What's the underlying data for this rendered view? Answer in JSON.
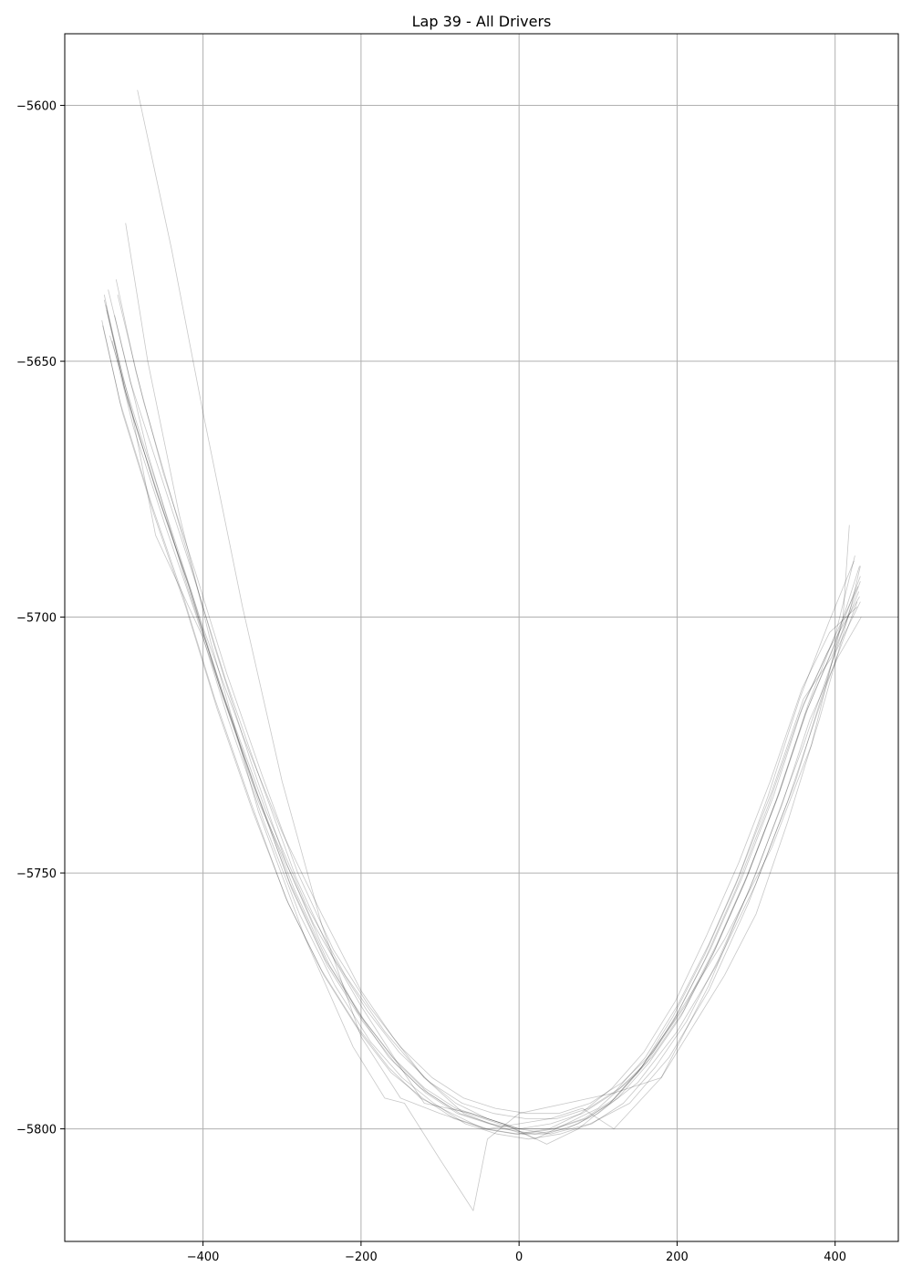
{
  "chart_data": {
    "type": "line",
    "title": "Lap 39 - All Drivers",
    "xlabel": "",
    "ylabel": "",
    "xlim": [
      -575,
      480
    ],
    "ylim": [
      -5822,
      -5586
    ],
    "grid": true,
    "line_color": "#000000",
    "grid_color": "#b0b0b0",
    "x_ticks": [
      -400,
      -200,
      0,
      200,
      400
    ],
    "x_tick_labels": [
      "−400",
      "−200",
      "0",
      "200",
      "400"
    ],
    "y_ticks": [
      -5600,
      -5650,
      -5700,
      -5750,
      -5800
    ],
    "y_tick_labels": [
      "−5600",
      "−5650",
      "−5700",
      "−5750",
      "−5800"
    ],
    "series": [
      {
        "x": [
          -525,
          -500,
          -460,
          -420,
          -380,
          -335,
          -290,
          -245,
          -200,
          -160,
          -120,
          -80,
          -40,
          0,
          40,
          80,
          120,
          160,
          200,
          240,
          280,
          320,
          360,
          395,
          430
        ],
        "y": [
          -5637,
          -5655,
          -5675,
          -5693,
          -5713,
          -5733,
          -5752,
          -5767,
          -5778,
          -5786,
          -5792,
          -5796,
          -5798,
          -5800,
          -5799,
          -5797,
          -5793,
          -5786,
          -5776,
          -5764,
          -5750,
          -5734,
          -5716,
          -5708,
          -5695
        ]
      },
      {
        "x": [
          -522,
          -495,
          -455,
          -415,
          -375,
          -330,
          -285,
          -240,
          -195,
          -155,
          -115,
          -75,
          -35,
          5,
          45,
          85,
          125,
          165,
          205,
          245,
          285,
          325,
          362,
          398,
          432
        ],
        "y": [
          -5640,
          -5658,
          -5677,
          -5695,
          -5715,
          -5735,
          -5753,
          -5768,
          -5779,
          -5787,
          -5793,
          -5797,
          -5799,
          -5801,
          -5800,
          -5798,
          -5794,
          -5787,
          -5778,
          -5766,
          -5752,
          -5736,
          -5719,
          -5706,
          -5692
        ]
      },
      {
        "x": [
          -527,
          -502,
          -462,
          -422,
          -382,
          -337,
          -292,
          -247,
          -202,
          -162,
          -122,
          -82,
          -42,
          -2,
          38,
          78,
          118,
          158,
          198,
          238,
          278,
          318,
          358,
          393,
          428
        ],
        "y": [
          -5643,
          -5660,
          -5680,
          -5698,
          -5718,
          -5738,
          -5756,
          -5770,
          -5781,
          -5789,
          -5794,
          -5798,
          -5800,
          -5801,
          -5800,
          -5797,
          -5792,
          -5785,
          -5775,
          -5762,
          -5748,
          -5732,
          -5714,
          -5703,
          -5698
        ]
      },
      {
        "x": [
          -520,
          -492,
          -452,
          -412,
          -372,
          -327,
          -282,
          -237,
          -192,
          -152,
          -112,
          -72,
          -32,
          8,
          48,
          88,
          128,
          168,
          208,
          248,
          288,
          328,
          365,
          400,
          431
        ],
        "y": [
          -5636,
          -5654,
          -5673,
          -5692,
          -5712,
          -5732,
          -5751,
          -5766,
          -5777,
          -5785,
          -5791,
          -5795,
          -5797,
          -5798,
          -5798,
          -5796,
          -5792,
          -5786,
          -5777,
          -5765,
          -5751,
          -5735,
          -5718,
          -5705,
          -5690
        ]
      },
      {
        "x": [
          -515,
          -488,
          -448,
          -408,
          -368,
          -323,
          -278,
          -233,
          -188,
          -148,
          -108,
          -68,
          -28,
          12,
          52,
          92,
          132,
          172,
          212,
          252,
          292,
          332,
          368,
          403,
          433
        ],
        "y": [
          -5646,
          -5663,
          -5682,
          -5700,
          -5720,
          -5740,
          -5758,
          -5772,
          -5783,
          -5790,
          -5795,
          -5799,
          -5801,
          -5802,
          -5801,
          -5799,
          -5795,
          -5788,
          -5779,
          -5767,
          -5753,
          -5737,
          -5720,
          -5708,
          -5700
        ]
      },
      {
        "x": [
          -510,
          -485,
          -450,
          -410,
          -370,
          -325,
          -280,
          -235,
          -190,
          -150,
          -110,
          -70,
          -30,
          10,
          50,
          90,
          130,
          170,
          210,
          250,
          290,
          330,
          366,
          401,
          425
        ],
        "y": [
          -5634,
          -5652,
          -5672,
          -5691,
          -5711,
          -5731,
          -5750,
          -5765,
          -5776,
          -5784,
          -5790,
          -5794,
          -5796,
          -5797,
          -5797,
          -5795,
          -5791,
          -5785,
          -5776,
          -5764,
          -5750,
          -5734,
          -5717,
          -5703,
          -5688
        ]
      },
      {
        "x": [
          -525,
          -498,
          -458,
          -418,
          -378,
          -333,
          -288,
          -243,
          -198,
          -158,
          -118,
          -78,
          -38,
          2,
          42,
          82,
          122,
          162,
          202,
          242,
          282,
          322,
          360,
          396,
          429
        ],
        "y": [
          -5638,
          -5656,
          -5676,
          -5694,
          -5714,
          -5734,
          -5753,
          -5768,
          -5779,
          -5787,
          -5793,
          -5797,
          -5799,
          -5800,
          -5800,
          -5798,
          -5794,
          -5787,
          -5777,
          -5765,
          -5751,
          -5735,
          -5717,
          -5705,
          -5694
        ]
      },
      {
        "x": [
          -523,
          -490,
          -460,
          -400,
          -330,
          -260,
          -200,
          -150,
          -120,
          -60,
          -20,
          20,
          60,
          100,
          150,
          200,
          260,
          320,
          370,
          410,
          418
        ],
        "y": [
          -5639,
          -5660,
          -5684,
          -5704,
          -5736,
          -5760,
          -5776,
          -5788,
          -5795,
          -5797,
          -5799,
          -5802,
          -5799,
          -5796,
          -5789,
          -5778,
          -5763,
          -5745,
          -5725,
          -5700,
          -5682
        ]
      },
      {
        "x": [
          -518,
          -480,
          -440,
          -400,
          -350,
          -300,
          -250,
          -200,
          -160,
          -120,
          -80,
          -40,
          0,
          40,
          90,
          140,
          190,
          240,
          290,
          340,
          390,
          428
        ],
        "y": [
          -5645,
          -5664,
          -5683,
          -5702,
          -5723,
          -5742,
          -5758,
          -5773,
          -5782,
          -5790,
          -5795,
          -5798,
          -5800,
          -5801,
          -5799,
          -5795,
          -5786,
          -5773,
          -5756,
          -5736,
          -5713,
          -5697
        ]
      },
      {
        "x": [
          -512,
          -470,
          -420,
          -370,
          -320,
          -270,
          -220,
          -170,
          -120,
          -70,
          -20,
          20,
          60,
          100,
          150,
          200,
          250,
          300,
          350,
          400,
          432
        ],
        "y": [
          -5641,
          -5668,
          -5694,
          -5717,
          -5738,
          -5756,
          -5770,
          -5781,
          -5790,
          -5797,
          -5800,
          -5801,
          -5800,
          -5797,
          -5791,
          -5781,
          -5768,
          -5752,
          -5732,
          -5707,
          -5697
        ]
      },
      {
        "x": [
          -498,
          -470,
          -430,
          -390,
          -330,
          -270,
          -210,
          -170,
          -145,
          -100,
          -58,
          -40,
          0,
          60,
          120,
          180,
          240,
          300,
          360,
          420,
          432
        ],
        "y": [
          -5623,
          -5650,
          -5680,
          -5705,
          -5738,
          -5763,
          -5784,
          -5794,
          -5795,
          -5806,
          -5816,
          -5802,
          -5797,
          -5795,
          -5793,
          -5790,
          -5772,
          -5750,
          -5725,
          -5698,
          -5693
        ]
      },
      {
        "x": [
          -483,
          -440,
          -400,
          -350,
          -300,
          -250,
          -200,
          -150,
          -100,
          -40,
          0,
          40,
          80,
          120,
          180,
          220,
          260,
          300,
          340,
          380,
          420,
          432
        ],
        "y": [
          -5597,
          -5628,
          -5660,
          -5698,
          -5732,
          -5760,
          -5782,
          -5794,
          -5797,
          -5800,
          -5799,
          -5798,
          -5796,
          -5800,
          -5790,
          -5780,
          -5770,
          -5758,
          -5740,
          -5720,
          -5698,
          -5690
        ]
      },
      {
        "x": [
          -508,
          -475,
          -430,
          -385,
          -340,
          -295,
          -250,
          -205,
          -165,
          -125,
          -85,
          -45,
          -5,
          35,
          75,
          115,
          155,
          195,
          235,
          275,
          315,
          355,
          392,
          424
        ],
        "y": [
          -5637,
          -5658,
          -5682,
          -5706,
          -5728,
          -5748,
          -5764,
          -5777,
          -5786,
          -5792,
          -5796,
          -5798,
          -5800,
          -5803,
          -5800,
          -5795,
          -5788,
          -5778,
          -5766,
          -5752,
          -5735,
          -5716,
          -5701,
          -5689
        ]
      },
      {
        "x": [
          -528,
          -505,
          -465,
          -425,
          -385,
          -340,
          -295,
          -250,
          -205,
          -165,
          -125,
          -85,
          -45,
          -5,
          35,
          75,
          115,
          155,
          195,
          235,
          275,
          315,
          355,
          390,
          431
        ],
        "y": [
          -5642,
          -5658,
          -5678,
          -5696,
          -5716,
          -5736,
          -5755,
          -5769,
          -5780,
          -5788,
          -5794,
          -5797,
          -5800,
          -5801,
          -5801,
          -5799,
          -5795,
          -5788,
          -5779,
          -5767,
          -5753,
          -5737,
          -5719,
          -5707,
          -5696
        ]
      }
    ]
  }
}
